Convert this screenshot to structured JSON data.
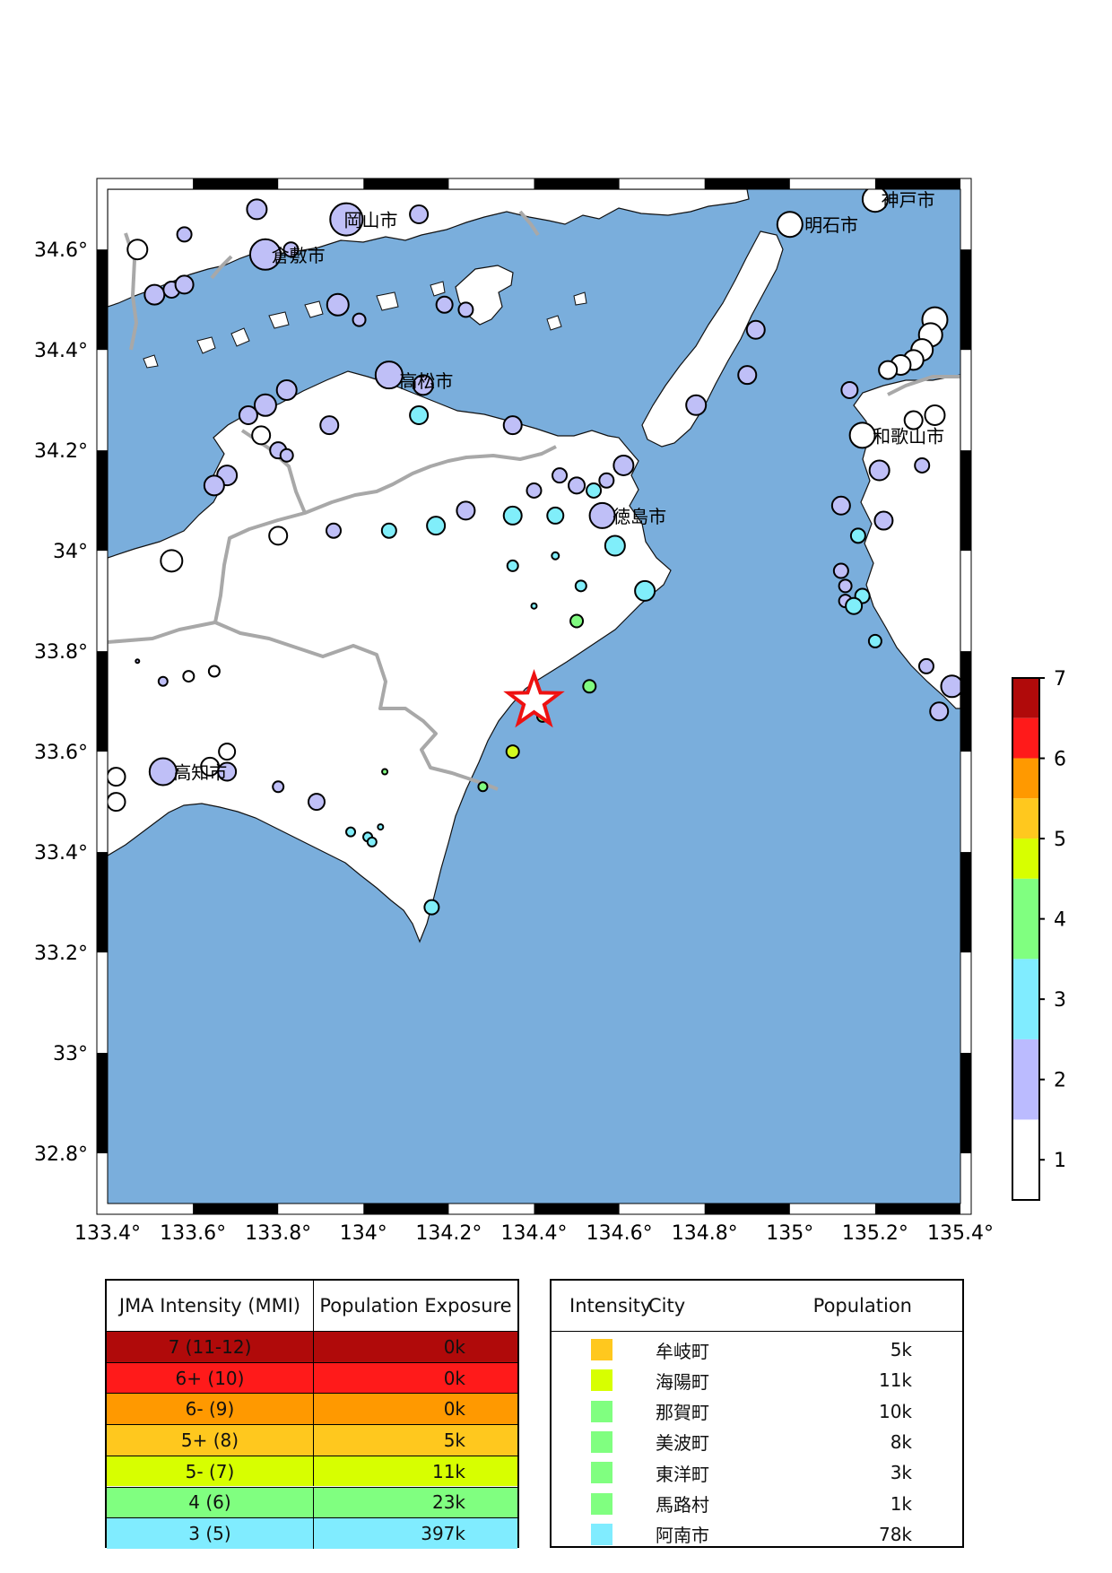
{
  "map": {
    "lon_range": [
      133.4,
      135.4
    ],
    "lat_range": [
      32.7,
      34.72
    ],
    "x_ticks": [
      {
        "value": 133.4,
        "label": "133.4°"
      },
      {
        "value": 133.6,
        "label": "133.6°"
      },
      {
        "value": 133.8,
        "label": "133.8°"
      },
      {
        "value": 134.0,
        "label": "134°"
      },
      {
        "value": 134.2,
        "label": "134.2°"
      },
      {
        "value": 134.4,
        "label": "134.4°"
      },
      {
        "value": 134.6,
        "label": "134.6°"
      },
      {
        "value": 134.8,
        "label": "134.8°"
      },
      {
        "value": 135.0,
        "label": "135°"
      },
      {
        "value": 135.2,
        "label": "135.2°"
      },
      {
        "value": 135.4,
        "label": "135.4°"
      }
    ],
    "y_ticks": [
      {
        "value": 34.6,
        "label": "34.6°"
      },
      {
        "value": 34.4,
        "label": "34.4°"
      },
      {
        "value": 34.2,
        "label": "34.2°"
      },
      {
        "value": 34.0,
        "label": "34°"
      },
      {
        "value": 33.8,
        "label": "33.8°"
      },
      {
        "value": 33.6,
        "label": "33.6°"
      },
      {
        "value": 33.4,
        "label": "33.4°"
      },
      {
        "value": 33.2,
        "label": "33.2°"
      },
      {
        "value": 33.0,
        "label": "33°"
      },
      {
        "value": 32.8,
        "label": "32.8°"
      }
    ],
    "colors": {
      "sea": "#7aaedc",
      "land": "#ffffff",
      "border": "#a8a8a8",
      "coast": "#111111",
      "epicenter": "#ee1111"
    },
    "epicenter": {
      "lon": 134.4,
      "lat": 33.7
    },
    "city_labels": [
      {
        "name": "岡山市",
        "lon": 133.95,
        "lat": 34.66
      },
      {
        "name": "倉敷市",
        "lon": 133.78,
        "lat": 34.59
      },
      {
        "name": "神戸市",
        "lon": 135.21,
        "lat": 34.7
      },
      {
        "name": "明石市",
        "lon": 135.03,
        "lat": 34.65
      },
      {
        "name": "高松市",
        "lon": 134.08,
        "lat": 34.34
      },
      {
        "name": "和歌山市",
        "lon": 135.19,
        "lat": 34.23
      },
      {
        "name": "徳島市",
        "lon": 134.58,
        "lat": 34.07
      },
      {
        "name": "高知市",
        "lon": 133.55,
        "lat": 33.56
      }
    ],
    "stations": [
      {
        "lon": 133.96,
        "lat": 34.66,
        "i": 2,
        "s": 18
      },
      {
        "lon": 133.77,
        "lat": 34.59,
        "i": 2,
        "s": 17
      },
      {
        "lon": 133.47,
        "lat": 34.6,
        "i": 1,
        "s": 11
      },
      {
        "lon": 133.75,
        "lat": 34.68,
        "i": 2,
        "s": 11
      },
      {
        "lon": 133.58,
        "lat": 34.63,
        "i": 2,
        "s": 8
      },
      {
        "lon": 133.83,
        "lat": 34.6,
        "i": 2,
        "s": 8
      },
      {
        "lon": 134.13,
        "lat": 34.67,
        "i": 2,
        "s": 10
      },
      {
        "lon": 133.51,
        "lat": 34.51,
        "i": 2,
        "s": 11
      },
      {
        "lon": 133.55,
        "lat": 34.52,
        "i": 2,
        "s": 9
      },
      {
        "lon": 133.58,
        "lat": 34.53,
        "i": 2,
        "s": 10
      },
      {
        "lon": 133.94,
        "lat": 34.49,
        "i": 2,
        "s": 12
      },
      {
        "lon": 133.99,
        "lat": 34.46,
        "i": 2,
        "s": 7
      },
      {
        "lon": 134.19,
        "lat": 34.49,
        "i": 2,
        "s": 9
      },
      {
        "lon": 134.24,
        "lat": 34.48,
        "i": 2,
        "s": 8
      },
      {
        "lon": 134.06,
        "lat": 34.35,
        "i": 2,
        "s": 15
      },
      {
        "lon": 134.14,
        "lat": 34.33,
        "i": 2,
        "s": 11
      },
      {
        "lon": 133.77,
        "lat": 34.29,
        "i": 2,
        "s": 12
      },
      {
        "lon": 133.82,
        "lat": 34.32,
        "i": 2,
        "s": 11
      },
      {
        "lon": 133.73,
        "lat": 34.27,
        "i": 2,
        "s": 10
      },
      {
        "lon": 133.92,
        "lat": 34.25,
        "i": 2,
        "s": 10
      },
      {
        "lon": 133.76,
        "lat": 34.23,
        "i": 1,
        "s": 10
      },
      {
        "lon": 133.8,
        "lat": 34.2,
        "i": 2,
        "s": 9
      },
      {
        "lon": 133.82,
        "lat": 34.19,
        "i": 2,
        "s": 7
      },
      {
        "lon": 134.13,
        "lat": 34.27,
        "i": 3,
        "s": 10
      },
      {
        "lon": 134.35,
        "lat": 34.25,
        "i": 2,
        "s": 10
      },
      {
        "lon": 133.68,
        "lat": 34.15,
        "i": 2,
        "s": 11
      },
      {
        "lon": 133.65,
        "lat": 34.13,
        "i": 2,
        "s": 11
      },
      {
        "lon": 133.8,
        "lat": 34.03,
        "i": 1,
        "s": 10
      },
      {
        "lon": 133.93,
        "lat": 34.04,
        "i": 2,
        "s": 8
      },
      {
        "lon": 134.06,
        "lat": 34.04,
        "i": 3,
        "s": 8
      },
      {
        "lon": 134.17,
        "lat": 34.05,
        "i": 3,
        "s": 10
      },
      {
        "lon": 134.24,
        "lat": 34.08,
        "i": 2,
        "s": 10
      },
      {
        "lon": 134.35,
        "lat": 34.07,
        "i": 3,
        "s": 10
      },
      {
        "lon": 134.45,
        "lat": 34.07,
        "i": 3,
        "s": 9
      },
      {
        "lon": 134.4,
        "lat": 34.12,
        "i": 2,
        "s": 8
      },
      {
        "lon": 134.46,
        "lat": 34.15,
        "i": 2,
        "s": 8
      },
      {
        "lon": 134.5,
        "lat": 34.13,
        "i": 2,
        "s": 9
      },
      {
        "lon": 134.54,
        "lat": 34.12,
        "i": 3,
        "s": 8
      },
      {
        "lon": 134.57,
        "lat": 34.14,
        "i": 2,
        "s": 8
      },
      {
        "lon": 134.61,
        "lat": 34.17,
        "i": 2,
        "s": 11
      },
      {
        "lon": 134.56,
        "lat": 34.07,
        "i": 2,
        "s": 14
      },
      {
        "lon": 134.59,
        "lat": 34.01,
        "i": 3,
        "s": 11
      },
      {
        "lon": 133.55,
        "lat": 33.98,
        "i": 1,
        "s": 12
      },
      {
        "lon": 134.35,
        "lat": 33.97,
        "i": 3,
        "s": 6
      },
      {
        "lon": 134.45,
        "lat": 33.99,
        "i": 3,
        "s": 4
      },
      {
        "lon": 134.51,
        "lat": 33.93,
        "i": 3,
        "s": 6
      },
      {
        "lon": 134.4,
        "lat": 33.89,
        "i": 3,
        "s": 3
      },
      {
        "lon": 134.5,
        "lat": 33.86,
        "i": 4,
        "s": 7
      },
      {
        "lon": 134.66,
        "lat": 33.92,
        "i": 3,
        "s": 11
      },
      {
        "lon": 134.53,
        "lat": 33.73,
        "i": 4,
        "s": 7
      },
      {
        "lon": 134.42,
        "lat": 33.67,
        "i": 4,
        "s": 6
      },
      {
        "lon": 134.35,
        "lat": 33.6,
        "i": 5,
        "s": 7
      },
      {
        "lon": 134.28,
        "lat": 33.53,
        "i": 4,
        "s": 5
      },
      {
        "lon": 133.47,
        "lat": 33.78,
        "i": 2,
        "s": 2
      },
      {
        "lon": 133.53,
        "lat": 33.74,
        "i": 2,
        "s": 5
      },
      {
        "lon": 133.59,
        "lat": 33.75,
        "i": 1,
        "s": 6
      },
      {
        "lon": 133.65,
        "lat": 33.76,
        "i": 1,
        "s": 6
      },
      {
        "lon": 133.53,
        "lat": 33.56,
        "i": 2,
        "s": 15
      },
      {
        "lon": 133.64,
        "lat": 33.57,
        "i": 1,
        "s": 10
      },
      {
        "lon": 133.68,
        "lat": 33.6,
        "i": 1,
        "s": 9
      },
      {
        "lon": 133.68,
        "lat": 33.56,
        "i": 2,
        "s": 10
      },
      {
        "lon": 133.42,
        "lat": 33.55,
        "i": 1,
        "s": 10
      },
      {
        "lon": 133.42,
        "lat": 33.5,
        "i": 1,
        "s": 10
      },
      {
        "lon": 133.8,
        "lat": 33.53,
        "i": 2,
        "s": 6
      },
      {
        "lon": 133.89,
        "lat": 33.5,
        "i": 2,
        "s": 9
      },
      {
        "lon": 134.05,
        "lat": 33.56,
        "i": 4,
        "s": 3
      },
      {
        "lon": 133.97,
        "lat": 33.44,
        "i": 3,
        "s": 5
      },
      {
        "lon": 134.01,
        "lat": 33.43,
        "i": 3,
        "s": 5
      },
      {
        "lon": 134.02,
        "lat": 33.42,
        "i": 3,
        "s": 5
      },
      {
        "lon": 134.04,
        "lat": 33.45,
        "i": 3,
        "s": 3
      },
      {
        "lon": 134.16,
        "lat": 33.29,
        "i": 3,
        "s": 8
      },
      {
        "lon": 135.0,
        "lat": 34.65,
        "i": 1,
        "s": 14
      },
      {
        "lon": 135.2,
        "lat": 34.7,
        "i": 1,
        "s": 14
      },
      {
        "lon": 134.92,
        "lat": 34.44,
        "i": 2,
        "s": 10
      },
      {
        "lon": 134.9,
        "lat": 34.35,
        "i": 2,
        "s": 10
      },
      {
        "lon": 134.78,
        "lat": 34.29,
        "i": 2,
        "s": 11
      },
      {
        "lon": 135.34,
        "lat": 34.46,
        "i": 1,
        "s": 14
      },
      {
        "lon": 135.33,
        "lat": 34.43,
        "i": 1,
        "s": 13
      },
      {
        "lon": 135.31,
        "lat": 34.4,
        "i": 1,
        "s": 12
      },
      {
        "lon": 135.29,
        "lat": 34.38,
        "i": 1,
        "s": 11
      },
      {
        "lon": 135.26,
        "lat": 34.37,
        "i": 1,
        "s": 11
      },
      {
        "lon": 135.23,
        "lat": 34.36,
        "i": 1,
        "s": 10
      },
      {
        "lon": 135.14,
        "lat": 34.32,
        "i": 2,
        "s": 9
      },
      {
        "lon": 135.34,
        "lat": 34.27,
        "i": 1,
        "s": 11
      },
      {
        "lon": 135.29,
        "lat": 34.26,
        "i": 1,
        "s": 10
      },
      {
        "lon": 135.17,
        "lat": 34.23,
        "i": 1,
        "s": 14
      },
      {
        "lon": 135.21,
        "lat": 34.16,
        "i": 2,
        "s": 11
      },
      {
        "lon": 135.31,
        "lat": 34.17,
        "i": 2,
        "s": 8
      },
      {
        "lon": 135.12,
        "lat": 34.09,
        "i": 2,
        "s": 10
      },
      {
        "lon": 135.22,
        "lat": 34.06,
        "i": 2,
        "s": 10
      },
      {
        "lon": 135.16,
        "lat": 34.03,
        "i": 3,
        "s": 8
      },
      {
        "lon": 135.12,
        "lat": 33.96,
        "i": 2,
        "s": 8
      },
      {
        "lon": 135.13,
        "lat": 33.93,
        "i": 2,
        "s": 7
      },
      {
        "lon": 135.17,
        "lat": 33.91,
        "i": 3,
        "s": 8
      },
      {
        "lon": 135.13,
        "lat": 33.9,
        "i": 2,
        "s": 7
      },
      {
        "lon": 135.15,
        "lat": 33.89,
        "i": 3,
        "s": 9
      },
      {
        "lon": 135.2,
        "lat": 33.82,
        "i": 3,
        "s": 7
      },
      {
        "lon": 135.32,
        "lat": 33.77,
        "i": 2,
        "s": 8
      },
      {
        "lon": 135.38,
        "lat": 33.73,
        "i": 2,
        "s": 12
      },
      {
        "lon": 135.35,
        "lat": 33.68,
        "i": 2,
        "s": 10
      }
    ]
  },
  "scale": {
    "ticks": [
      "7",
      "6",
      "5",
      "4",
      "3",
      "2",
      "1"
    ],
    "bands": [
      {
        "from": 6.5,
        "to": 7.0,
        "color": "#b00a0a"
      },
      {
        "from": 6.0,
        "to": 6.5,
        "color": "#ff1a1a"
      },
      {
        "from": 5.5,
        "to": 6.0,
        "color": "#ff9900"
      },
      {
        "from": 5.0,
        "to": 5.5,
        "color": "#ffc81e"
      },
      {
        "from": 4.5,
        "to": 5.0,
        "color": "#d7ff00"
      },
      {
        "from": 3.5,
        "to": 4.5,
        "color": "#80ff80"
      },
      {
        "from": 2.5,
        "to": 3.5,
        "color": "#80ecff"
      },
      {
        "from": 1.5,
        "to": 2.5,
        "color": "#bbbbff"
      },
      {
        "from": 0.5,
        "to": 1.5,
        "color": "#ffffff"
      }
    ],
    "station_colors": {
      "1": "#ffffff",
      "2": "#bfbff7",
      "3": "#80eefa",
      "4": "#80fa80",
      "5": "#d4fa20"
    }
  },
  "intensity_table": {
    "header": [
      "JMA Intensity (MMI)",
      "Population Exposure"
    ],
    "rows": [
      {
        "intensity": "7 (11-12)",
        "exposure": "0k",
        "color": "#b00a0a"
      },
      {
        "intensity": "6+ (10)",
        "exposure": "0k",
        "color": "#ff1a1a"
      },
      {
        "intensity": "6- (9)",
        "exposure": "0k",
        "color": "#ff9900"
      },
      {
        "intensity": "5+ (8)",
        "exposure": "5k",
        "color": "#ffc81e"
      },
      {
        "intensity": "5- (7)",
        "exposure": "11k",
        "color": "#d7ff00"
      },
      {
        "intensity": "4 (6)",
        "exposure": "23k",
        "color": "#80ff80"
      },
      {
        "intensity": "3 (5)",
        "exposure": "397k",
        "color": "#80ecff"
      }
    ]
  },
  "city_table": {
    "header": {
      "intensity": "Intensity",
      "city": "City",
      "population": "Population"
    },
    "rows": [
      {
        "color": "#ffc81e",
        "city": "牟岐町",
        "population": "5k"
      },
      {
        "color": "#d7ff00",
        "city": "海陽町",
        "population": "11k"
      },
      {
        "color": "#80ff80",
        "city": "那賀町",
        "population": "10k"
      },
      {
        "color": "#80ff80",
        "city": "美波町",
        "population": "8k"
      },
      {
        "color": "#80ff80",
        "city": "東洋町",
        "population": "3k"
      },
      {
        "color": "#80ff80",
        "city": "馬路村",
        "population": "1k"
      },
      {
        "color": "#80ecff",
        "city": "阿南市",
        "population": "78k"
      }
    ]
  }
}
